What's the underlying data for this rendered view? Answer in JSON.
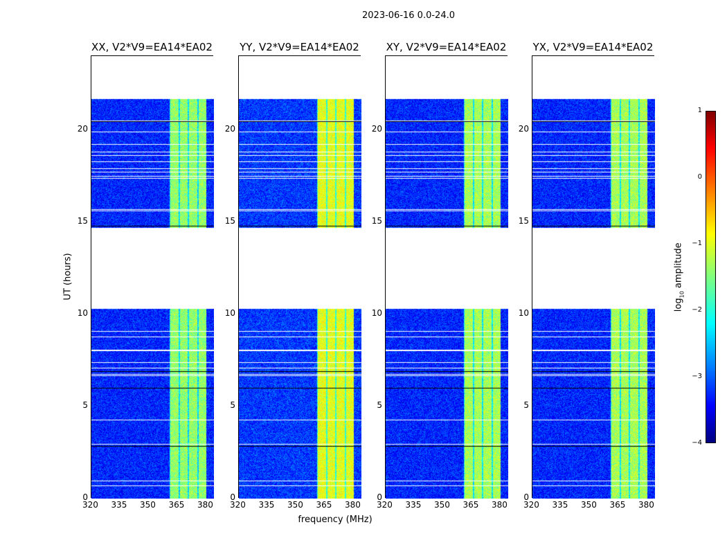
{
  "suptitle": "2023-06-16 0.0-24.0",
  "chart_data": {
    "type": "heatmap",
    "title": "2023-06-16 0.0-24.0",
    "xlabel": "frequency (MHz)",
    "ylabel": "UT (hours)",
    "xlim": [
      320,
      384
    ],
    "ylim": [
      0,
      24
    ],
    "xticks": [
      "320",
      "335",
      "350",
      "365",
      "380"
    ],
    "yticks": [
      "0",
      "5",
      "10",
      "15",
      "20"
    ],
    "data_time_ranges_hours": [
      [
        0,
        10.3
      ],
      [
        14.7,
        21.7
      ]
    ],
    "bright_band_MHz": [
      360.5,
      380
    ],
    "panels": [
      {
        "title": "XX, V2*V9=EA14*EA02",
        "background_log_amp": -3.2,
        "band_log_amp": -1.4
      },
      {
        "title": "YY, V2*V9=EA14*EA02",
        "background_log_amp": -3.1,
        "band_log_amp": -1.0
      },
      {
        "title": "XY, V2*V9=EA14*EA02",
        "background_log_amp": -3.2,
        "band_log_amp": -1.3
      },
      {
        "title": "YX, V2*V9=EA14*EA02",
        "background_log_amp": -3.2,
        "band_log_amp": -1.3
      }
    ],
    "colorbar": {
      "label": "log10 amplitude",
      "label_base": "log",
      "label_sub": "10",
      "label_rest": " amplitude",
      "range": [
        -4,
        1
      ],
      "ticks": [
        "1",
        "0",
        "−1",
        "−2",
        "−3",
        "−4"
      ],
      "colormap": "jet"
    }
  }
}
